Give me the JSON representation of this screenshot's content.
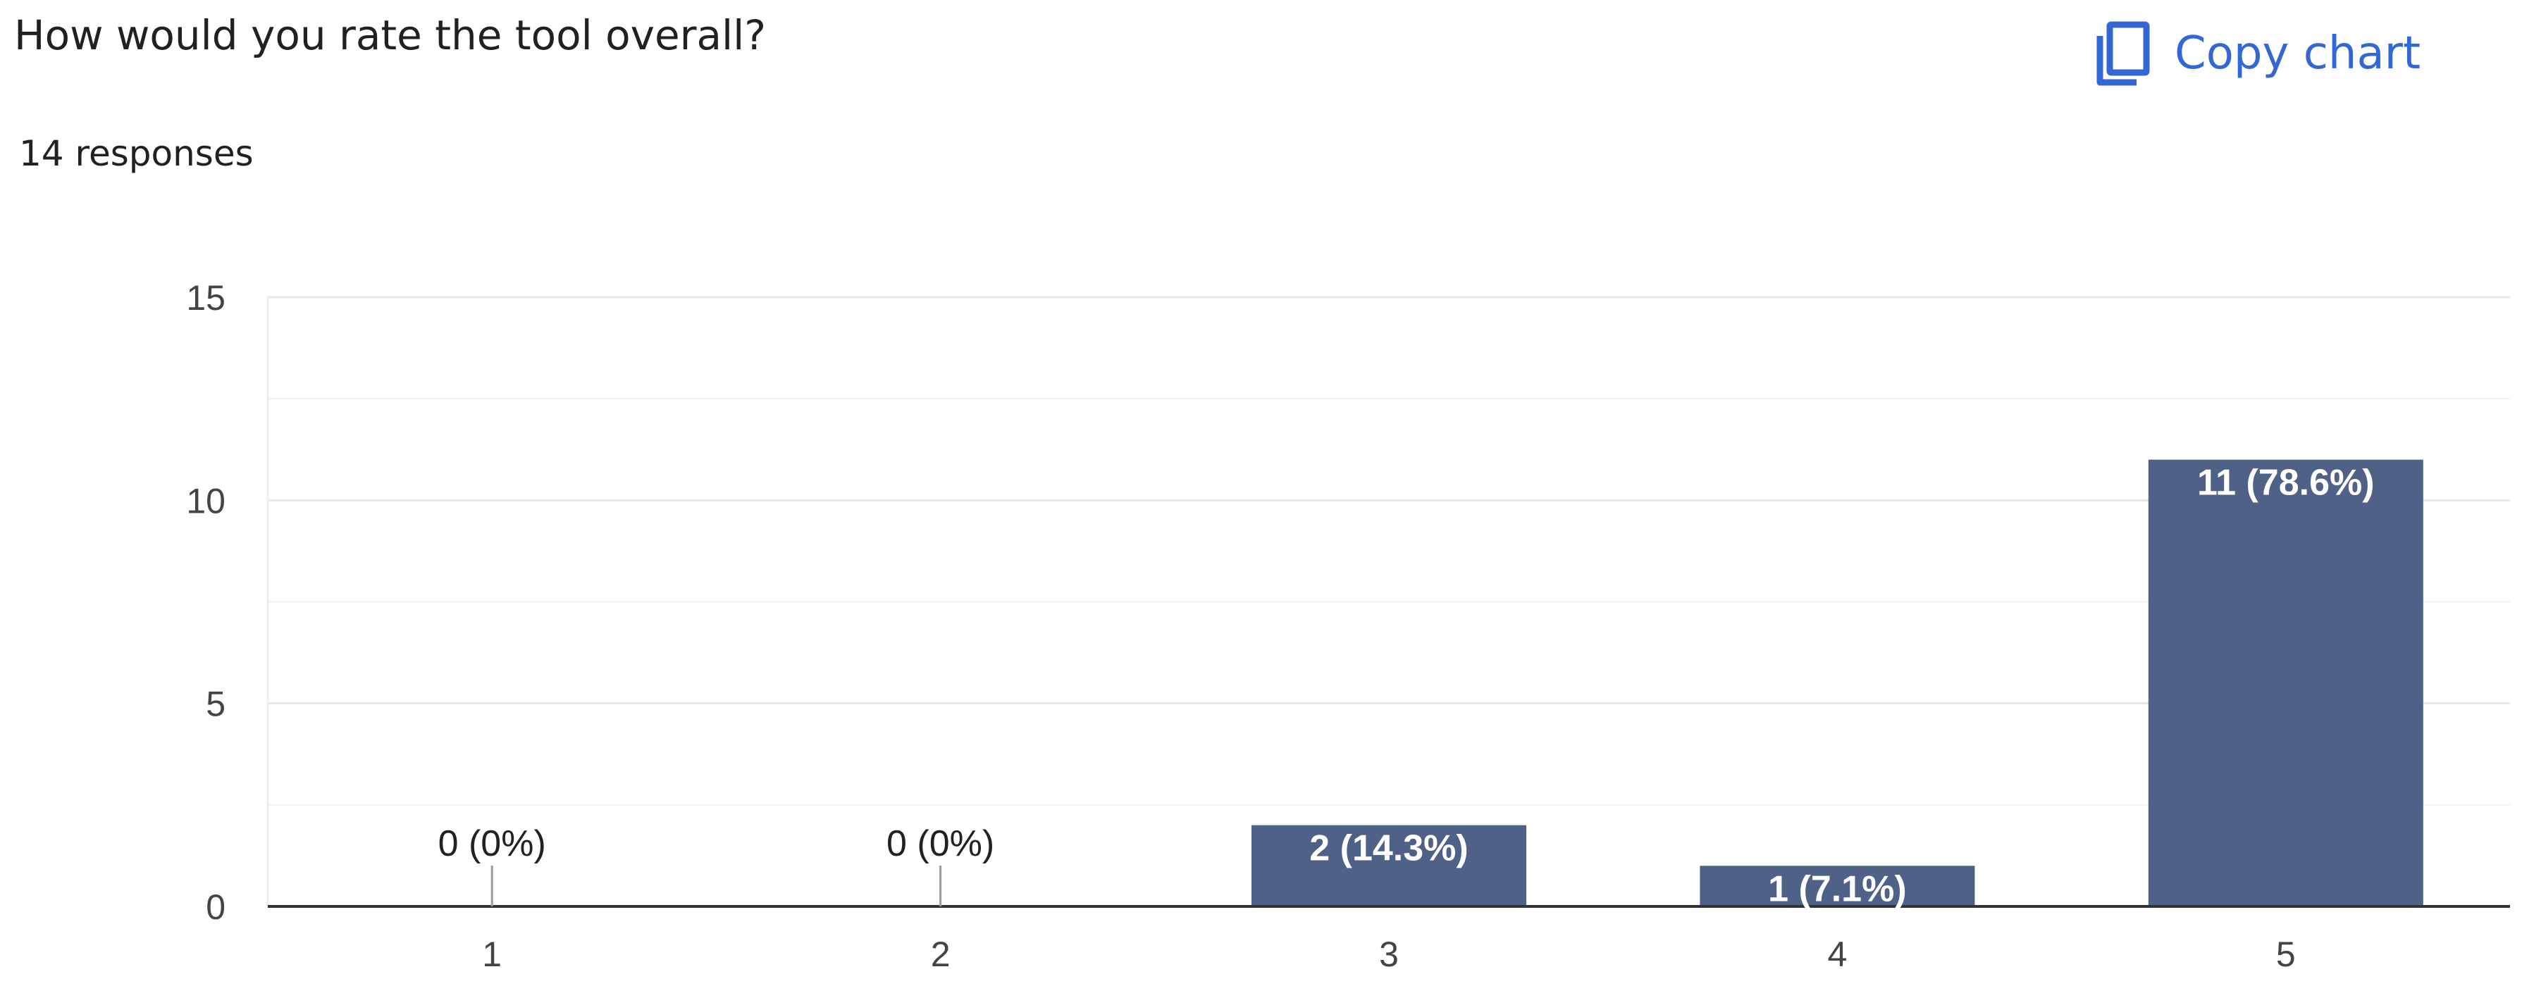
{
  "question": {
    "title": "How would you rate the tool overall?",
    "responses": "14 responses"
  },
  "toolbar": {
    "copy_chart_label": "Copy chart",
    "copy_icon": "copy-icon",
    "accent_color": "#3367d6"
  },
  "chart_data": {
    "type": "bar",
    "categories": [
      "1",
      "2",
      "3",
      "4",
      "5"
    ],
    "values": [
      0,
      0,
      2,
      1,
      11
    ],
    "data_labels": [
      "0 (0%)",
      "0 (0%)",
      "2 (14.3%)",
      "1 (7.1%)",
      "11 (78.6%)"
    ],
    "y_ticks": [
      0,
      5,
      10,
      15
    ],
    "ylim": [
      0,
      15
    ],
    "xlabel": "",
    "ylabel": "",
    "grid": true,
    "bar_color": "#4f6186",
    "grid_color": "#e8e8e8",
    "axis_color": "#333333"
  }
}
